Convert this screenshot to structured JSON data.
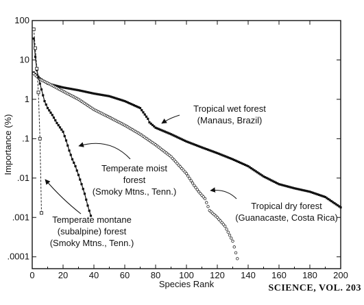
{
  "chart_data": {
    "type": "scatter",
    "xlabel": "Species Rank",
    "ylabel": "Importance (%)",
    "xlim": [
      0,
      200
    ],
    "ylim": [
      5e-05,
      100
    ],
    "yscale": "log",
    "x_ticks": [
      0,
      20,
      40,
      60,
      80,
      100,
      120,
      140,
      160,
      180,
      200
    ],
    "x_tick_labels": [
      "0",
      "20",
      "40",
      "60",
      "80",
      "100",
      "120",
      "140",
      "160",
      "180",
      "200"
    ],
    "y_ticks": [
      100,
      10,
      1,
      0.1,
      0.01,
      0.001,
      0.0001
    ],
    "y_tick_labels": [
      "100",
      "10",
      "1",
      ".1",
      ".01",
      ".001",
      ".0001"
    ],
    "grid": false,
    "series": [
      {
        "key": "wet",
        "marker": "filled-square",
        "label_lines": [
          "Tropical wet forest",
          "(Manaus, Brazil)"
        ],
        "points": [
          [
            1,
            4.8
          ],
          [
            5,
            3.4
          ],
          [
            10,
            2.5
          ],
          [
            20,
            2.0
          ],
          [
            30,
            1.7
          ],
          [
            40,
            1.4
          ],
          [
            50,
            1.2
          ],
          [
            60,
            0.9
          ],
          [
            70,
            0.6
          ],
          [
            75,
            0.32
          ],
          [
            76,
            0.26
          ],
          [
            80,
            0.19
          ],
          [
            90,
            0.13
          ],
          [
            100,
            0.085
          ],
          [
            110,
            0.06
          ],
          [
            120,
            0.043
          ],
          [
            130,
            0.03
          ],
          [
            140,
            0.02
          ],
          [
            150,
            0.011
          ],
          [
            160,
            0.007
          ],
          [
            170,
            0.0055
          ],
          [
            180,
            0.0045
          ],
          [
            190,
            0.0033
          ],
          [
            200,
            0.0018
          ]
        ]
      },
      {
        "key": "dry",
        "marker": "open-circle",
        "label_lines": [
          "Tropical dry forest",
          "(Guanacaste, Costa Rica)"
        ],
        "points": [
          [
            1,
            4.5
          ],
          [
            5,
            3.2
          ],
          [
            10,
            2.6
          ],
          [
            20,
            1.6
          ],
          [
            30,
            1.0
          ],
          [
            40,
            0.55
          ],
          [
            50,
            0.35
          ],
          [
            60,
            0.22
          ],
          [
            70,
            0.13
          ],
          [
            80,
            0.07
          ],
          [
            90,
            0.035
          ],
          [
            100,
            0.013
          ],
          [
            105,
            0.0065
          ],
          [
            108,
            0.0045
          ],
          [
            112,
            0.003
          ],
          [
            115,
            0.0015
          ],
          [
            120,
            0.001
          ],
          [
            125,
            0.0006
          ],
          [
            130,
            0.00025
          ],
          [
            133,
            9e-05
          ]
        ]
      },
      {
        "key": "moist",
        "marker": "filled-square",
        "label_lines": [
          "Temperate moist",
          "forest",
          "(Smoky Mtns., Tenn.)"
        ],
        "points": [
          [
            1,
            35
          ],
          [
            2,
            12
          ],
          [
            3,
            5.5
          ],
          [
            5,
            2.5
          ],
          [
            8,
            0.9
          ],
          [
            10,
            0.6
          ],
          [
            13,
            0.4
          ],
          [
            16,
            0.25
          ],
          [
            20,
            0.15
          ],
          [
            22,
            0.09
          ],
          [
            24,
            0.05
          ],
          [
            26,
            0.03
          ],
          [
            28,
            0.02
          ],
          [
            30,
            0.012
          ],
          [
            32,
            0.007
          ],
          [
            34,
            0.004
          ],
          [
            36,
            0.002
          ],
          [
            38,
            0.0011
          ]
        ]
      },
      {
        "key": "montane",
        "marker": "open-square-dashed",
        "label_lines": [
          "Temperate montane",
          "(subalpine) forest",
          "(Smoky Mtns., Tenn.)"
        ],
        "points": [
          [
            1,
            60
          ],
          [
            2,
            20
          ],
          [
            3,
            6
          ],
          [
            4,
            1.5
          ],
          [
            5,
            0.1
          ],
          [
            6,
            0.0013
          ]
        ]
      }
    ]
  },
  "footer": {
    "text": "SCIENCE, VOL. 203"
  }
}
